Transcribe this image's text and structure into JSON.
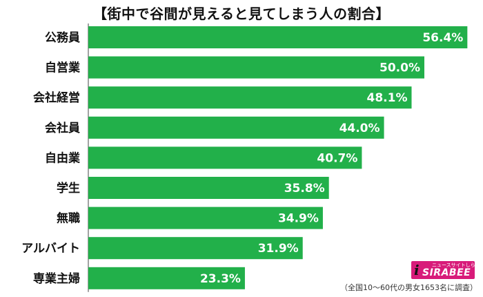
{
  "chart_data": {
    "type": "bar",
    "orientation": "horizontal",
    "title": "【街中で谷間が見えると見てしまう人の割合】",
    "categories": [
      "公務員",
      "自営業",
      "会社経営",
      "会社員",
      "自由業",
      "学生",
      "無職",
      "アルバイト",
      "専業主婦"
    ],
    "values": [
      56.4,
      50.0,
      48.1,
      44.0,
      40.7,
      35.8,
      34.9,
      31.9,
      23.3
    ],
    "value_labels": [
      "56.4%",
      "50.0%",
      "48.1%",
      "44.0%",
      "40.7%",
      "35.8%",
      "34.9%",
      "31.9%",
      "23.3%"
    ],
    "xlim": [
      0,
      57.7
    ],
    "bar_color": "#22b04a",
    "xlabel": "",
    "ylabel": ""
  },
  "logo": {
    "small_text": "ニュースサイトしらべぇ",
    "i_glyph": "i",
    "text": "SIRABEE"
  },
  "source_note": "（全国10～60代の男女1653名に調査）"
}
